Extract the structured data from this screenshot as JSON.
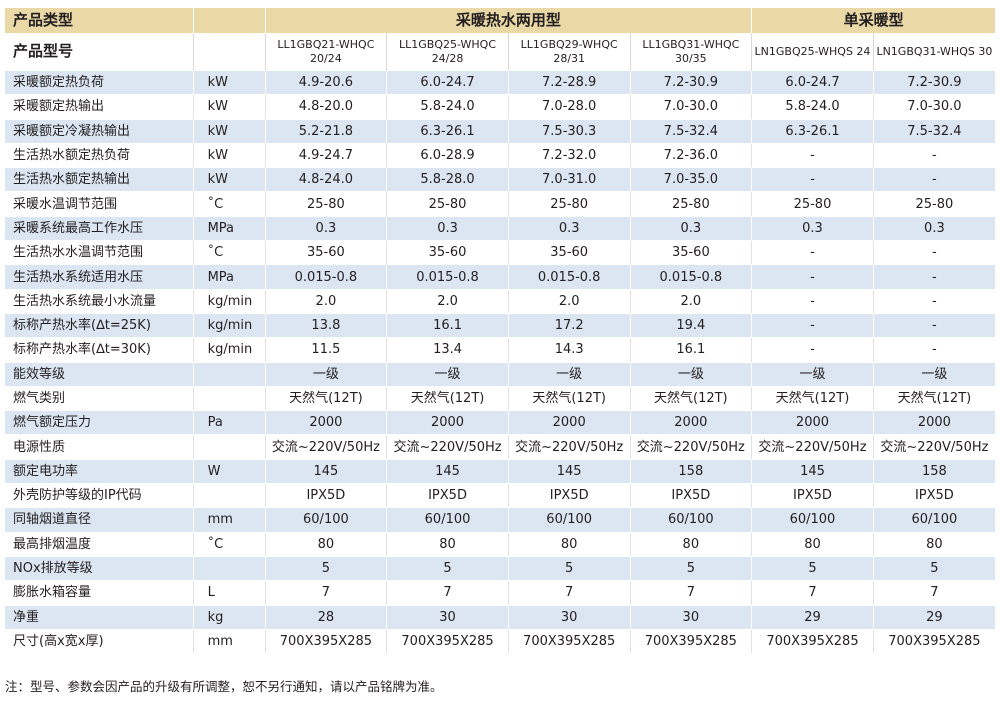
{
  "header": {
    "category_label": "产品类型",
    "group_dual": "采暖热水两用型",
    "group_single": "单采暖型",
    "model_label": "产品型号",
    "models": [
      "LL1GBQ21-WHQC 20/24",
      "LL1GBQ25-WHQC 24/28",
      "LL1GBQ29-WHQC 28/31",
      "LL1GBQ31-WHQC 30/35",
      "LN1GBQ25-WHQS 24",
      "LN1GBQ31-WHQS 30"
    ]
  },
  "rows": [
    {
      "name": "采暖额定热负荷",
      "unit": "kW",
      "values": [
        "4.9-20.6",
        "6.0-24.7",
        "7.2-28.9",
        "7.2-30.9",
        "6.0-24.7",
        "7.2-30.9"
      ]
    },
    {
      "name": "采暖额定热输出",
      "unit": "kW",
      "values": [
        "4.8-20.0",
        "5.8-24.0",
        "7.0-28.0",
        "7.0-30.0",
        "5.8-24.0",
        "7.0-30.0"
      ]
    },
    {
      "name": "采暖额定冷凝热输出",
      "unit": "kW",
      "values": [
        "5.2-21.8",
        "6.3-26.1",
        "7.5-30.3",
        "7.5-32.4",
        "6.3-26.1",
        "7.5-32.4"
      ]
    },
    {
      "name": "生活热水额定热负荷",
      "unit": "kW",
      "values": [
        "4.9-24.7",
        "6.0-28.9",
        "7.2-32.0",
        "7.2-36.0",
        "-",
        "-"
      ]
    },
    {
      "name": "生活热水额定热输出",
      "unit": "kW",
      "values": [
        "4.8-24.0",
        "5.8-28.0",
        "7.0-31.0",
        "7.0-35.0",
        "-",
        "-"
      ]
    },
    {
      "name": "采暖水温调节范围",
      "unit": "˚C",
      "values": [
        "25-80",
        "25-80",
        "25-80",
        "25-80",
        "25-80",
        "25-80"
      ]
    },
    {
      "name": "采暖系统最高工作水压",
      "unit": "MPa",
      "values": [
        "0.3",
        "0.3",
        "0.3",
        "0.3",
        "0.3",
        "0.3"
      ]
    },
    {
      "name": "生活热水水温调节范围",
      "unit": "˚C",
      "values": [
        "35-60",
        "35-60",
        "35-60",
        "35-60",
        "-",
        "-"
      ]
    },
    {
      "name": "生活热水系统适用水压",
      "unit": "MPa",
      "values": [
        "0.015-0.8",
        "0.015-0.8",
        "0.015-0.8",
        "0.015-0.8",
        "-",
        "-"
      ]
    },
    {
      "name": "生活热水系统最小水流量",
      "unit": "kg/min",
      "values": [
        "2.0",
        "2.0",
        "2.0",
        "2.0",
        "-",
        "-"
      ]
    },
    {
      "name": "标称产热水率(∆t=25K)",
      "unit": "kg/min",
      "values": [
        "13.8",
        "16.1",
        "17.2",
        "19.4",
        "-",
        "-"
      ]
    },
    {
      "name": "标称产热水率(∆t=30K)",
      "unit": "kg/min",
      "values": [
        "11.5",
        "13.4",
        "14.3",
        "16.1",
        "-",
        "-"
      ]
    },
    {
      "name": "能效等级",
      "unit": "",
      "values": [
        "一级",
        "一级",
        "一级",
        "一级",
        "一级",
        "一级"
      ]
    },
    {
      "name": "燃气类别",
      "unit": "",
      "values": [
        "天然气(12T)",
        "天然气(12T)",
        "天然气(12T)",
        "天然气(12T)",
        "天然气(12T)",
        "天然气(12T)"
      ]
    },
    {
      "name": "燃气额定压力",
      "unit": "Pa",
      "values": [
        "2000",
        "2000",
        "2000",
        "2000",
        "2000",
        "2000"
      ]
    },
    {
      "name": "电源性质",
      "unit": "",
      "values": [
        "交流~220V/50Hz",
        "交流~220V/50Hz",
        "交流~220V/50Hz",
        "交流~220V/50Hz",
        "交流~220V/50Hz",
        "交流~220V/50Hz"
      ]
    },
    {
      "name": "额定电功率",
      "unit": "W",
      "values": [
        "145",
        "145",
        "145",
        "158",
        "145",
        "158"
      ]
    },
    {
      "name": "外壳防护等级的IP代码",
      "unit": "",
      "values": [
        "IPX5D",
        "IPX5D",
        "IPX5D",
        "IPX5D",
        "IPX5D",
        "IPX5D"
      ]
    },
    {
      "name": "同轴烟道直径",
      "unit": "mm",
      "values": [
        "60/100",
        "60/100",
        "60/100",
        "60/100",
        "60/100",
        "60/100"
      ]
    },
    {
      "name": "最高排烟温度",
      "unit": "˚C",
      "values": [
        "80",
        "80",
        "80",
        "80",
        "80",
        "80"
      ]
    },
    {
      "name": "NOx排放等级",
      "unit": "",
      "values": [
        "5",
        "5",
        "5",
        "5",
        "5",
        "5"
      ]
    },
    {
      "name": "膨胀水箱容量",
      "unit": "L",
      "values": [
        "7",
        "7",
        "7",
        "7",
        "7",
        "7"
      ]
    },
    {
      "name": "净重",
      "unit": "kg",
      "values": [
        "28",
        "30",
        "30",
        "30",
        "29",
        "29"
      ]
    },
    {
      "name": "尺寸(高x宽x厚)",
      "unit": "mm",
      "values": [
        "700X395X285",
        "700X395X285",
        "700X395X285",
        "700X395X285",
        "700X395X285",
        "700X395X285"
      ]
    }
  ],
  "footnote": "注：型号、参数会因产品的升级有所调整，恕不另行通知，请以产品铭牌为准。",
  "colors": {
    "header_bg": "#ead9a7",
    "stripe_bg": "#dce5f2",
    "text": "#231f20"
  }
}
